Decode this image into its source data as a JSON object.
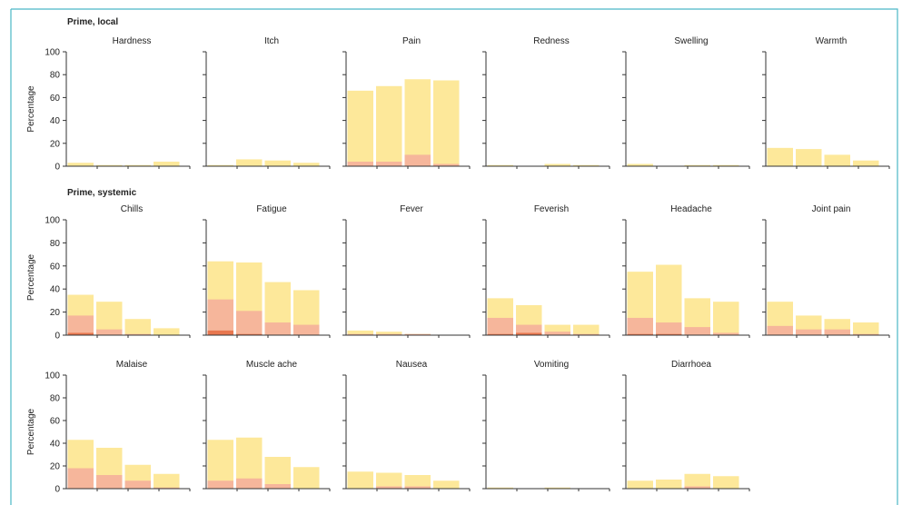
{
  "sections": [
    "Prime, local",
    "Prime, systemic"
  ],
  "y_label": "Percentage",
  "y_ticks": [
    0,
    20,
    40,
    60,
    80,
    100
  ],
  "colors": {
    "mild": "#fde89a",
    "moderate": "#f6b69b",
    "severe": "#e8774f",
    "axis": "#333333",
    "frame": "#4bb8c6"
  },
  "chart_data": [
    {
      "type": "bar",
      "title": "Hardness",
      "ylim": [
        0,
        100
      ],
      "ylabel": "Percentage",
      "series": [
        {
          "values": [
            3,
            1,
            1,
            4
          ]
        },
        {
          "values": [
            0,
            0,
            0,
            0
          ]
        },
        {
          "values": [
            0,
            0,
            0,
            0
          ]
        }
      ]
    },
    {
      "type": "bar",
      "title": "Itch",
      "ylim": [
        0,
        100
      ],
      "series": [
        {
          "values": [
            1,
            6,
            5,
            3
          ]
        },
        {
          "values": [
            0,
            0,
            0,
            0
          ]
        },
        {
          "values": [
            0,
            0,
            0,
            0
          ]
        }
      ]
    },
    {
      "type": "bar",
      "title": "Pain",
      "ylim": [
        0,
        100
      ],
      "series": [
        {
          "values": [
            66,
            70,
            76,
            75
          ]
        },
        {
          "values": [
            4,
            4,
            10,
            2
          ]
        },
        {
          "values": [
            0,
            0,
            0,
            0
          ]
        }
      ]
    },
    {
      "type": "bar",
      "title": "Redness",
      "ylim": [
        0,
        100
      ],
      "series": [
        {
          "values": [
            1,
            0,
            2,
            1
          ]
        },
        {
          "values": [
            0,
            0,
            0,
            0
          ]
        },
        {
          "values": [
            0,
            0,
            0,
            0
          ]
        }
      ]
    },
    {
      "type": "bar",
      "title": "Swelling",
      "ylim": [
        0,
        100
      ],
      "series": [
        {
          "values": [
            2,
            0,
            1,
            1
          ]
        },
        {
          "values": [
            0,
            0,
            0,
            0
          ]
        },
        {
          "values": [
            0,
            0,
            0,
            0
          ]
        }
      ]
    },
    {
      "type": "bar",
      "title": "Warmth",
      "ylim": [
        0,
        100
      ],
      "series": [
        {
          "values": [
            16,
            15,
            10,
            5
          ]
        },
        {
          "values": [
            0,
            0,
            0,
            0
          ]
        },
        {
          "values": [
            0,
            0,
            0,
            0
          ]
        }
      ]
    },
    {
      "type": "bar",
      "title": "Chills",
      "ylim": [
        0,
        100
      ],
      "ylabel": "Percentage",
      "series": [
        {
          "values": [
            35,
            29,
            14,
            6
          ]
        },
        {
          "values": [
            17,
            5,
            1,
            0
          ]
        },
        {
          "values": [
            2,
            0,
            0,
            0
          ]
        }
      ]
    },
    {
      "type": "bar",
      "title": "Fatigue",
      "ylim": [
        0,
        100
      ],
      "series": [
        {
          "values": [
            64,
            63,
            46,
            39
          ]
        },
        {
          "values": [
            31,
            21,
            11,
            9
          ]
        },
        {
          "values": [
            4,
            1,
            0,
            0
          ]
        }
      ]
    },
    {
      "type": "bar",
      "title": "Fever",
      "ylim": [
        0,
        100
      ],
      "series": [
        {
          "values": [
            4,
            3,
            1,
            0
          ]
        },
        {
          "values": [
            1,
            1,
            1,
            0
          ]
        },
        {
          "values": [
            0,
            0,
            0,
            0
          ]
        }
      ]
    },
    {
      "type": "bar",
      "title": "Feverish",
      "ylim": [
        0,
        100
      ],
      "series": [
        {
          "values": [
            32,
            26,
            9,
            9
          ]
        },
        {
          "values": [
            15,
            9,
            3,
            1
          ]
        },
        {
          "values": [
            1,
            2,
            0,
            0
          ]
        }
      ]
    },
    {
      "type": "bar",
      "title": "Headache",
      "ylim": [
        0,
        100
      ],
      "series": [
        {
          "values": [
            55,
            61,
            32,
            29
          ]
        },
        {
          "values": [
            15,
            11,
            7,
            2
          ]
        },
        {
          "values": [
            1,
            1,
            0,
            0
          ]
        }
      ]
    },
    {
      "type": "bar",
      "title": "Joint pain",
      "ylim": [
        0,
        100
      ],
      "series": [
        {
          "values": [
            29,
            17,
            14,
            11
          ]
        },
        {
          "values": [
            8,
            5,
            5,
            1
          ]
        },
        {
          "values": [
            0,
            0,
            0,
            0
          ]
        }
      ]
    },
    {
      "type": "bar",
      "title": "Malaise",
      "ylim": [
        0,
        100
      ],
      "ylabel": "Percentage",
      "series": [
        {
          "values": [
            43,
            36,
            21,
            13
          ]
        },
        {
          "values": [
            18,
            12,
            7,
            1
          ]
        },
        {
          "values": [
            0,
            0,
            0,
            0
          ]
        }
      ]
    },
    {
      "type": "bar",
      "title": "Muscle ache",
      "ylim": [
        0,
        100
      ],
      "series": [
        {
          "values": [
            43,
            45,
            28,
            19
          ]
        },
        {
          "values": [
            7,
            9,
            4,
            0
          ]
        },
        {
          "values": [
            0,
            0,
            0,
            0
          ]
        }
      ]
    },
    {
      "type": "bar",
      "title": "Nausea",
      "ylim": [
        0,
        100
      ],
      "series": [
        {
          "values": [
            15,
            14,
            12,
            7
          ]
        },
        {
          "values": [
            0,
            2,
            2,
            0
          ]
        },
        {
          "values": [
            0,
            0,
            0,
            0
          ]
        }
      ]
    },
    {
      "type": "bar",
      "title": "Vomiting",
      "ylim": [
        0,
        100
      ],
      "series": [
        {
          "values": [
            1,
            0,
            1,
            0
          ]
        },
        {
          "values": [
            0,
            0,
            0,
            0
          ]
        },
        {
          "values": [
            0,
            0,
            0,
            0
          ]
        }
      ]
    },
    {
      "type": "bar",
      "title": "Diarrhoea",
      "ylim": [
        0,
        100
      ],
      "series": [
        {
          "values": [
            7,
            8,
            13,
            11
          ]
        },
        {
          "values": [
            0,
            0,
            2,
            0
          ]
        },
        {
          "values": [
            0,
            0,
            0,
            0
          ]
        }
      ]
    }
  ]
}
